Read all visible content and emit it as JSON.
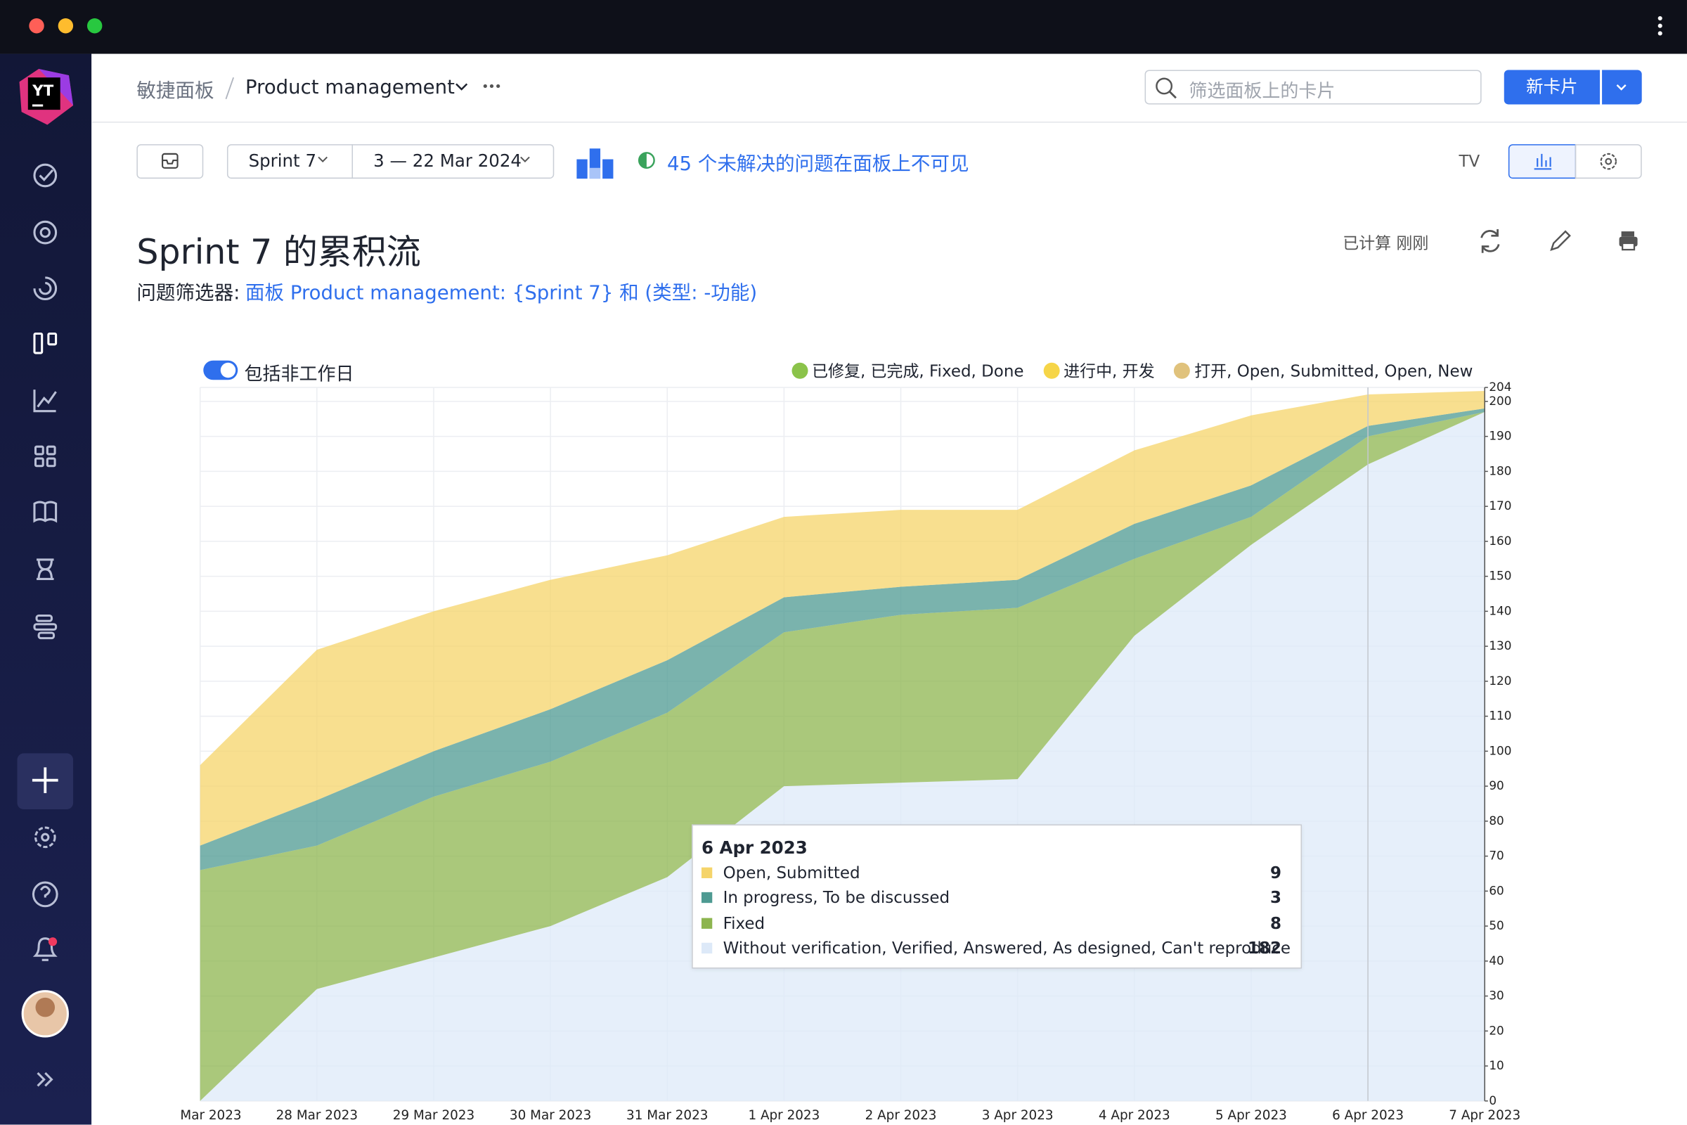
{
  "sidebar": {
    "logo": "YT"
  },
  "header": {
    "breadcrumb_root": "敏捷面板",
    "board": "Product management",
    "search_placeholder": "筛选面板上的卡片",
    "new_card_button": "新卡片"
  },
  "toolbar": {
    "sprint": "Sprint 7",
    "dates": "3 — 22 Mar 2024",
    "hidden_issues": "45 个未解决的问题在面板上不可见",
    "tv": "TV"
  },
  "report": {
    "title": "Sprint 7 的累积流",
    "calculated": "已计算 刚刚",
    "filter_label": "问题筛选器:",
    "filter_query": "面板 Product management: {Sprint 7} 和 (类型: -功能)",
    "include_non_working_days": "包括非工作日"
  },
  "chart_data": {
    "type": "area",
    "stacked": true,
    "categories": [
      "Mar 2023",
      "28 Mar 2023",
      "29 Mar 2023",
      "30 Mar 2023",
      "31 Mar 2023",
      "1 Apr 2023",
      "2 Apr 2023",
      "3 Apr 2023",
      "4 Apr 2023",
      "5 Apr 2023",
      "6 Apr 2023",
      "7 Apr 2023"
    ],
    "series": [
      {
        "name": "Open, Submitted",
        "color": "#f5d46a",
        "values": [
          23,
          43,
          40,
          37,
          30,
          23,
          22,
          20,
          21,
          20,
          9,
          5
        ]
      },
      {
        "name": "In progress, To be discussed",
        "color": "#4e9a92",
        "values": [
          7,
          13,
          13,
          15,
          15,
          10,
          8,
          8,
          10,
          9,
          3,
          1
        ]
      },
      {
        "name": "Fixed",
        "color": "#8db54f",
        "values": [
          66,
          41,
          46,
          47,
          47,
          44,
          48,
          49,
          22,
          8,
          8,
          0
        ]
      },
      {
        "name": "Without verification, Verified, Answered, As designed, Can't reproduce",
        "color": "#dde9f8",
        "values": [
          0,
          32,
          41,
          50,
          64,
          90,
          91,
          92,
          133,
          159,
          182,
          197
        ]
      }
    ],
    "legend": [
      {
        "name": "已修复, 已完成, Fixed, Done",
        "color": "#8bc34a"
      },
      {
        "name": "进行中, 开发",
        "color": "#f6d548"
      },
      {
        "name": "打开, Open, Submitted, Open, New",
        "color": "#e0c27c"
      }
    ],
    "ylim": [
      0,
      204
    ],
    "yticks": [
      0,
      10,
      20,
      30,
      40,
      50,
      60,
      70,
      80,
      90,
      100,
      110,
      120,
      130,
      140,
      150,
      160,
      170,
      180,
      190,
      200,
      204
    ],
    "grid": true,
    "axis_side": "right"
  }
}
